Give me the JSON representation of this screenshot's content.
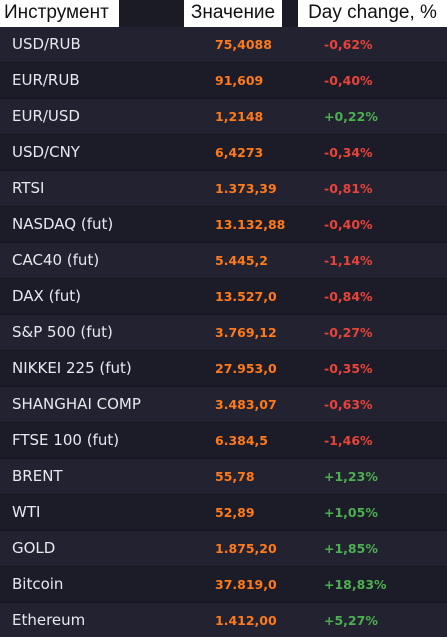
{
  "header": {
    "instrument_label": "Инструмент",
    "value_label": "Значение",
    "change_label": "Day change, %"
  },
  "colors": {
    "value": "#ff7a1a",
    "negative": "#e8433a",
    "positive": "#4caf50"
  },
  "rows": [
    {
      "name": "USD/RUB",
      "value": "75,4088",
      "change": "-0,62%",
      "dir": "neg"
    },
    {
      "name": "EUR/RUB",
      "value": "91,609",
      "change": "-0,40%",
      "dir": "neg"
    },
    {
      "name": "EUR/USD",
      "value": "1,2148",
      "change": "+0,22%",
      "dir": "pos"
    },
    {
      "name": "USD/CNY",
      "value": "6,4273",
      "change": "-0,34%",
      "dir": "neg"
    },
    {
      "name": "RTSI",
      "value": "1.373,39",
      "change": "-0,81%",
      "dir": "neg"
    },
    {
      "name": "NASDAQ (fut)",
      "value": "13.132,88",
      "change": "-0,40%",
      "dir": "neg"
    },
    {
      "name": "CAC40 (fut)",
      "value": "5.445,2",
      "change": "-1,14%",
      "dir": "neg"
    },
    {
      "name": "DAX (fut)",
      "value": "13.527,0",
      "change": "-0,84%",
      "dir": "neg"
    },
    {
      "name": "S&P 500 (fut)",
      "value": "3.769,12",
      "change": "-0,27%",
      "dir": "neg"
    },
    {
      "name": "NIKKEI 225 (fut)",
      "value": "27.953,0",
      "change": "-0,35%",
      "dir": "neg"
    },
    {
      "name": "SHANGHAI COMP",
      "value": "3.483,07",
      "change": "-0,63%",
      "dir": "neg"
    },
    {
      "name": "FTSE 100 (fut)",
      "value": "6.384,5",
      "change": "-1,46%",
      "dir": "neg"
    },
    {
      "name": "BRENT",
      "value": "55,78",
      "change": "+1,23%",
      "dir": "pos"
    },
    {
      "name": "WTI",
      "value": "52,89",
      "change": "+1,05%",
      "dir": "pos"
    },
    {
      "name": "GOLD",
      "value": "1.875,20",
      "change": "+1,85%",
      "dir": "pos"
    },
    {
      "name": "Bitcoin",
      "value": "37.819,0",
      "change": "+18,83%",
      "dir": "pos"
    },
    {
      "name": "Ethereum",
      "value": "1.412,00",
      "change": "+5,27%",
      "dir": "pos"
    }
  ]
}
